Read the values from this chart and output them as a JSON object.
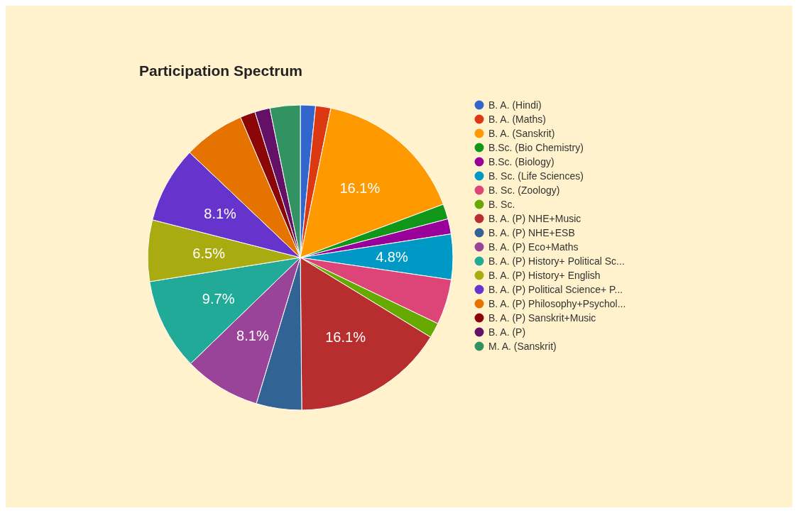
{
  "chart_data": {
    "type": "pie",
    "title": "Participation Spectrum",
    "categories": [
      "B. A. (Hindi)",
      "B. A. (Maths)",
      "B. A. (Sanskrit)",
      "B.Sc. (Bio Chemistry)",
      "B.Sc. (Biology)",
      "B. Sc. (Life Sciences)",
      "B. Sc. (Zoology)",
      "B. Sc.",
      "B. A. (P) NHE+Music",
      "B. A. (P) NHE+ESB",
      "B. A. (P) Eco+Maths",
      "B. A. (P) History+ Political Sc...",
      "B. A. (P) History+ English",
      "B. A. (P) Political Science+ P...",
      "B. A. (P) Philosophy+Psychol...",
      "B. A. (P) Sanskrit+Music",
      "B. A. (P)",
      "M. A. (Sanskrit)"
    ],
    "values": [
      1.6,
      1.6,
      16.1,
      1.6,
      1.6,
      4.8,
      4.8,
      1.6,
      16.1,
      4.8,
      8.1,
      9.7,
      6.5,
      8.1,
      6.5,
      1.6,
      1.6,
      3.2
    ],
    "value_labels": [
      null,
      null,
      "16.1%",
      null,
      null,
      "4.8%",
      null,
      null,
      "16.1%",
      null,
      "8.1%",
      "9.7%",
      "6.5%",
      "8.1%",
      null,
      null,
      null,
      null
    ],
    "colors": [
      "#3366cc",
      "#dc3912",
      "#ff9900",
      "#109618",
      "#990099",
      "#0099c6",
      "#dd4477",
      "#66aa00",
      "#b82e2e",
      "#316395",
      "#994499",
      "#22aa99",
      "#aaaa11",
      "#6633cc",
      "#e67300",
      "#8b0707",
      "#651067",
      "#329262"
    ],
    "legend": "right"
  }
}
